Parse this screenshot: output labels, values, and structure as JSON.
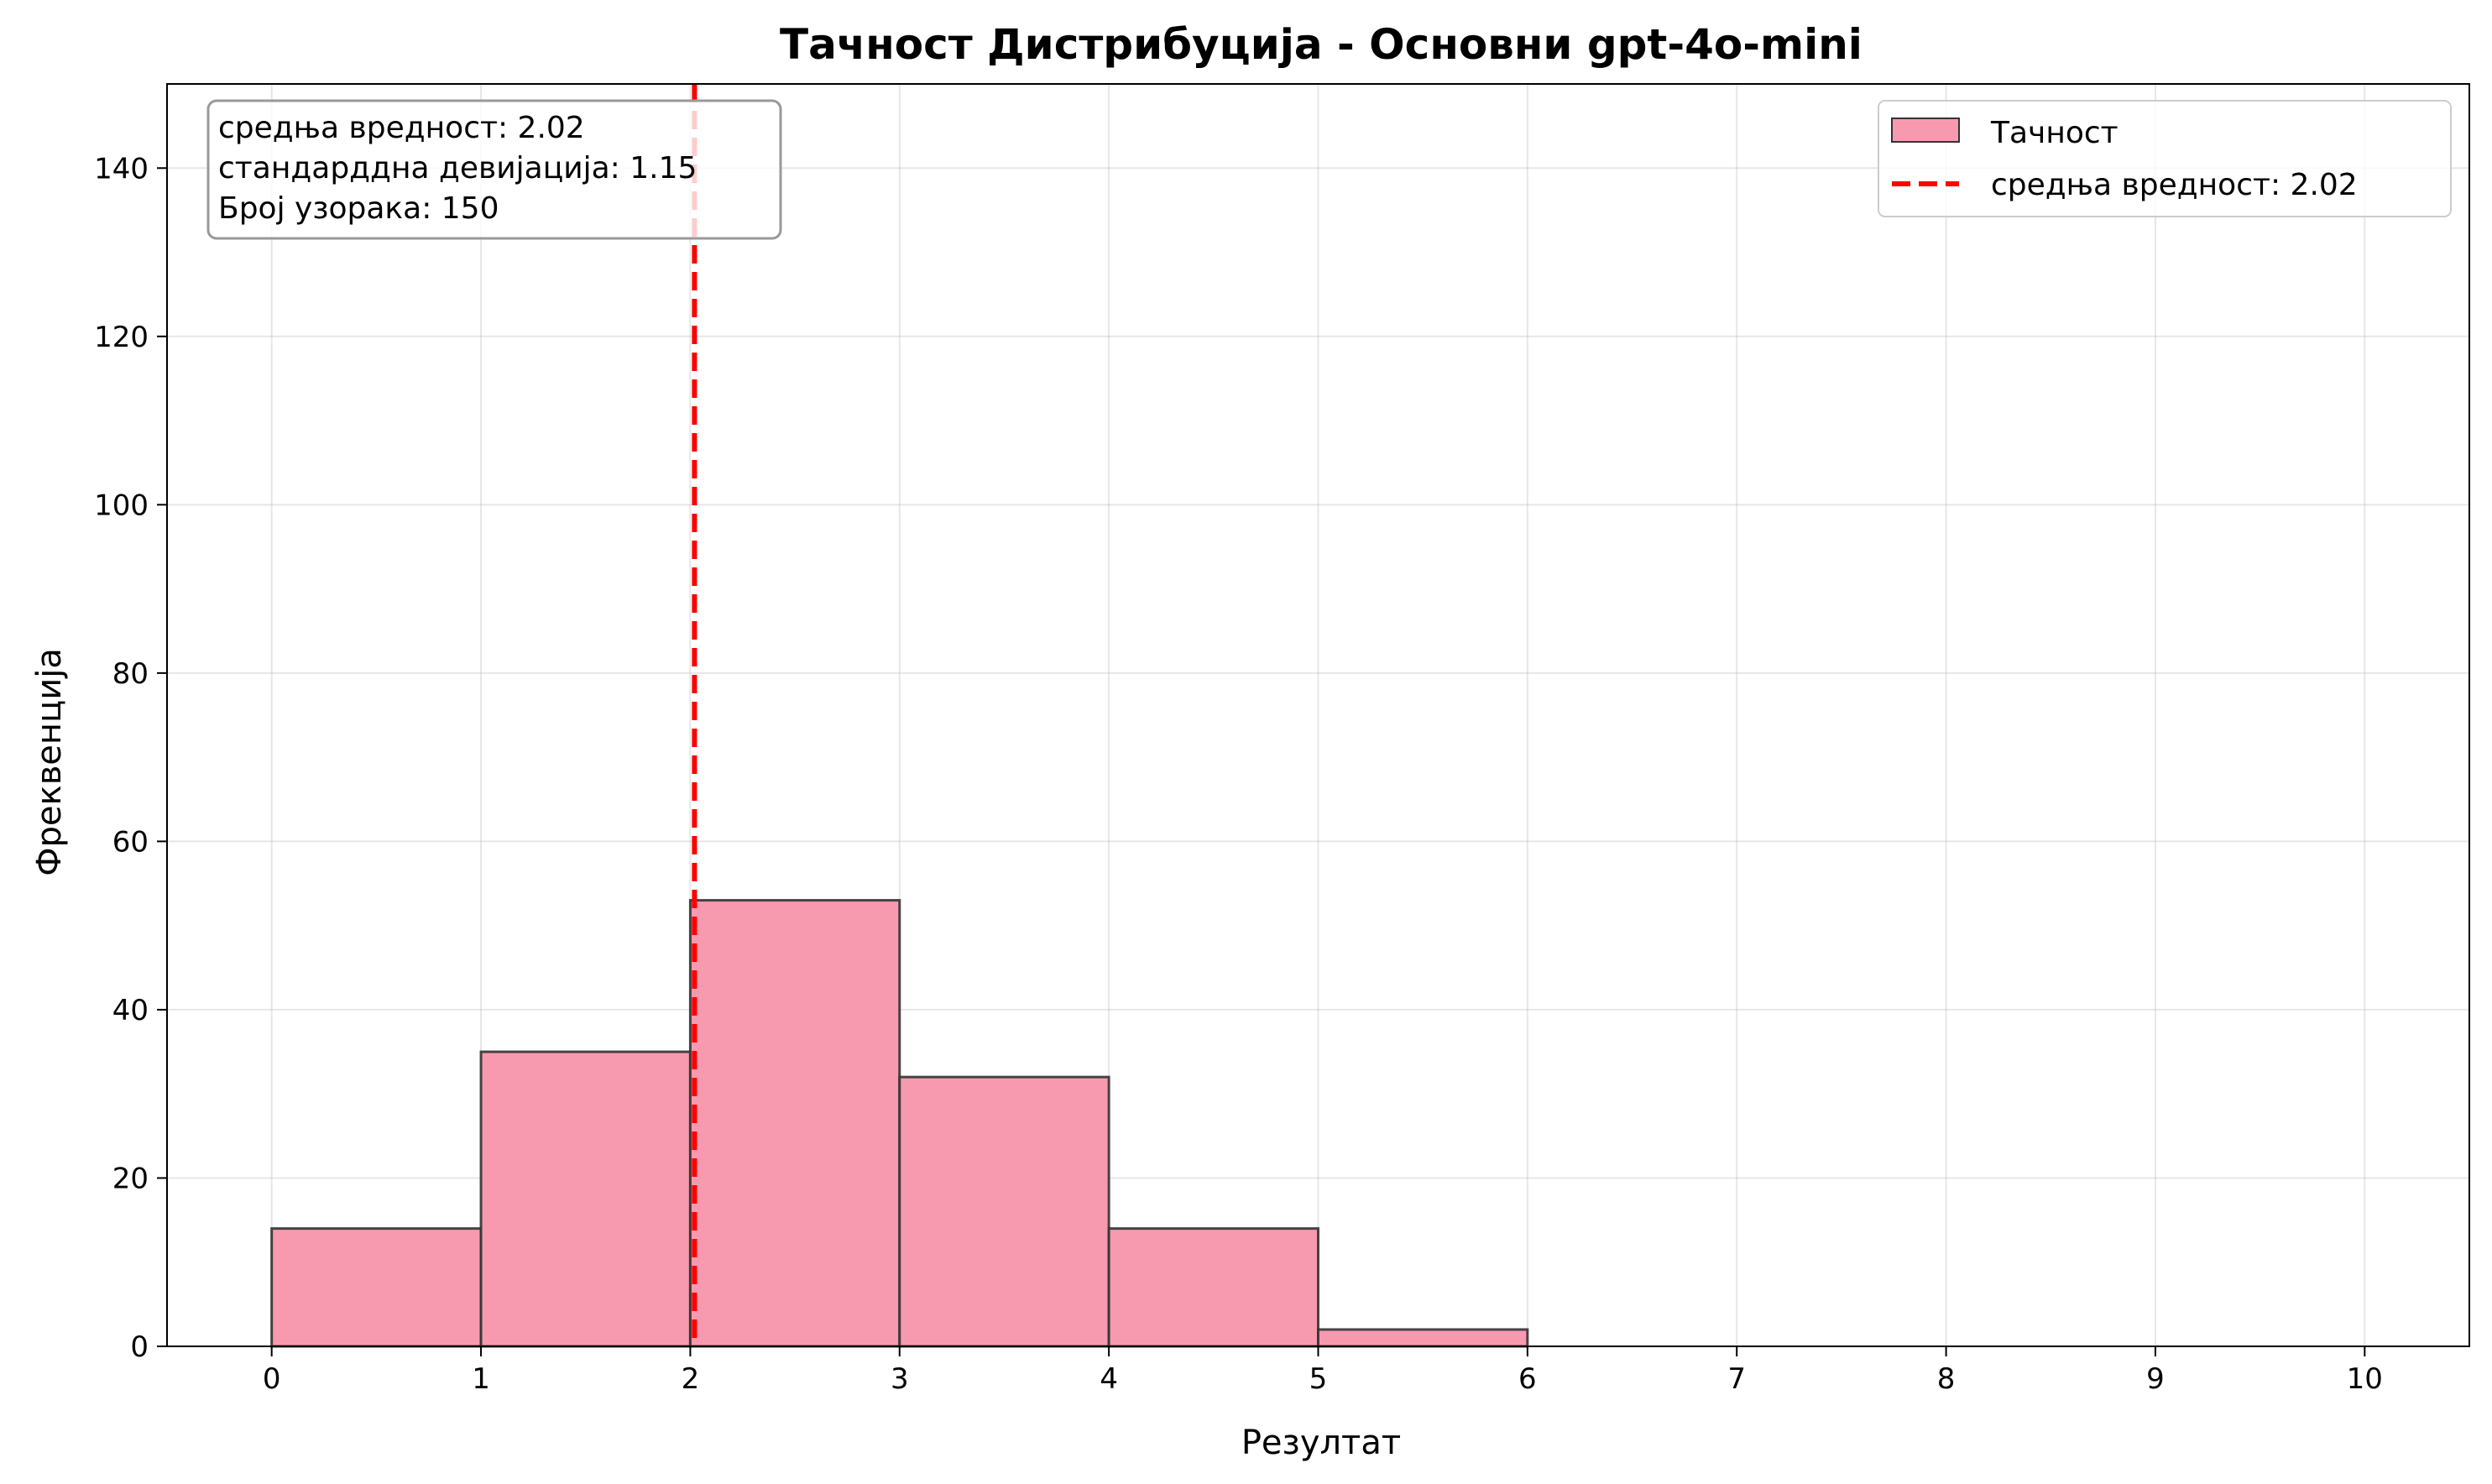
{
  "chart_data": {
    "type": "bar",
    "title": "Тачност Дистрибуција - Основни gpt-4o-mini",
    "xlabel": "Резултат",
    "ylabel": "Фреквенција",
    "bins": [
      [
        0,
        1
      ],
      [
        1,
        2
      ],
      [
        2,
        3
      ],
      [
        3,
        4
      ],
      [
        4,
        5
      ],
      [
        5,
        6
      ],
      [
        6,
        7
      ],
      [
        7,
        8
      ],
      [
        8,
        9
      ],
      [
        9,
        10
      ]
    ],
    "values": [
      14,
      35,
      53,
      32,
      14,
      2,
      0,
      0,
      0,
      0
    ],
    "xlim": [
      -0.5,
      10.5
    ],
    "ylim": [
      0,
      150
    ],
    "xticks": [
      "0",
      "1",
      "2",
      "3",
      "4",
      "5",
      "6",
      "7",
      "8",
      "9",
      "10"
    ],
    "yticks": [
      "0",
      "20",
      "40",
      "60",
      "80",
      "100",
      "120",
      "140"
    ],
    "grid": true,
    "bar_color": "#f79aaf",
    "bar_edge_color": "#333333",
    "mean": 2.02,
    "mean_line_color": "#ff0000",
    "legend": {
      "placement": "top-right",
      "entries": [
        "Тачност",
        "средња вредност: 2.02"
      ]
    },
    "info_box": {
      "placement": "top-left",
      "lines": [
        "средња вредност: 2.02",
        "стандарддна девијација: 1.15",
        "Број узорака: 150"
      ]
    }
  }
}
